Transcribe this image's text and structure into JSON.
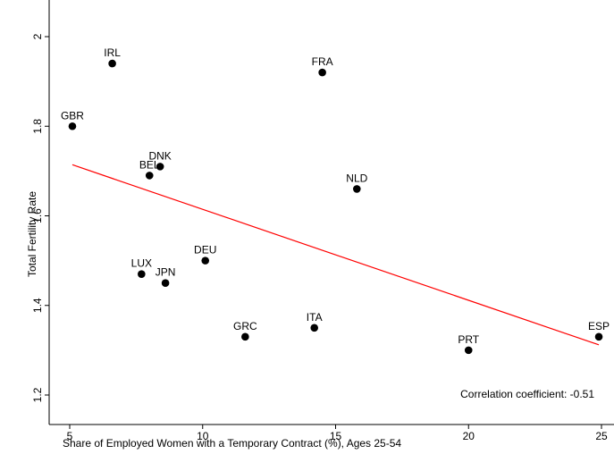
{
  "chart_data": {
    "type": "scatter",
    "title": "",
    "xlabel": "Share of Employed Women with a Temporary Contract (%), Ages 25-54",
    "ylabel": "Total Fertility Rate",
    "xlim": [
      5,
      25
    ],
    "ylim": [
      1.2,
      2.0
    ],
    "xticks": [
      5,
      10,
      15,
      20,
      25
    ],
    "yticks": [
      1.2,
      1.4,
      1.6,
      1.8,
      2.0
    ],
    "ytick_labels": [
      "1.2",
      "1.4",
      "1.6",
      "1.8",
      "2"
    ],
    "grid": false,
    "points": [
      {
        "label": "IRL",
        "x": 6.6,
        "y": 1.94
      },
      {
        "label": "FRA",
        "x": 14.5,
        "y": 1.92
      },
      {
        "label": "GBR",
        "x": 5.1,
        "y": 1.8
      },
      {
        "label": "DNK",
        "x": 8.4,
        "y": 1.71
      },
      {
        "label": "BEL",
        "x": 8.0,
        "y": 1.69
      },
      {
        "label": "NLD",
        "x": 15.8,
        "y": 1.66
      },
      {
        "label": "DEU",
        "x": 10.1,
        "y": 1.5
      },
      {
        "label": "LUX",
        "x": 7.7,
        "y": 1.47
      },
      {
        "label": "JPN",
        "x": 8.6,
        "y": 1.45
      },
      {
        "label": "GRC",
        "x": 11.6,
        "y": 1.33
      },
      {
        "label": "ITA",
        "x": 14.2,
        "y": 1.35
      },
      {
        "label": "PRT",
        "x": 20.0,
        "y": 1.3
      },
      {
        "label": "ESP",
        "x": 24.9,
        "y": 1.33
      }
    ],
    "fit_line": {
      "color": "#ff0000",
      "x": [
        5.1,
        24.9
      ],
      "y": [
        1.714,
        1.312
      ]
    },
    "annotation": "Correlation coefficient: -0.51",
    "marker_color": "#000000"
  }
}
